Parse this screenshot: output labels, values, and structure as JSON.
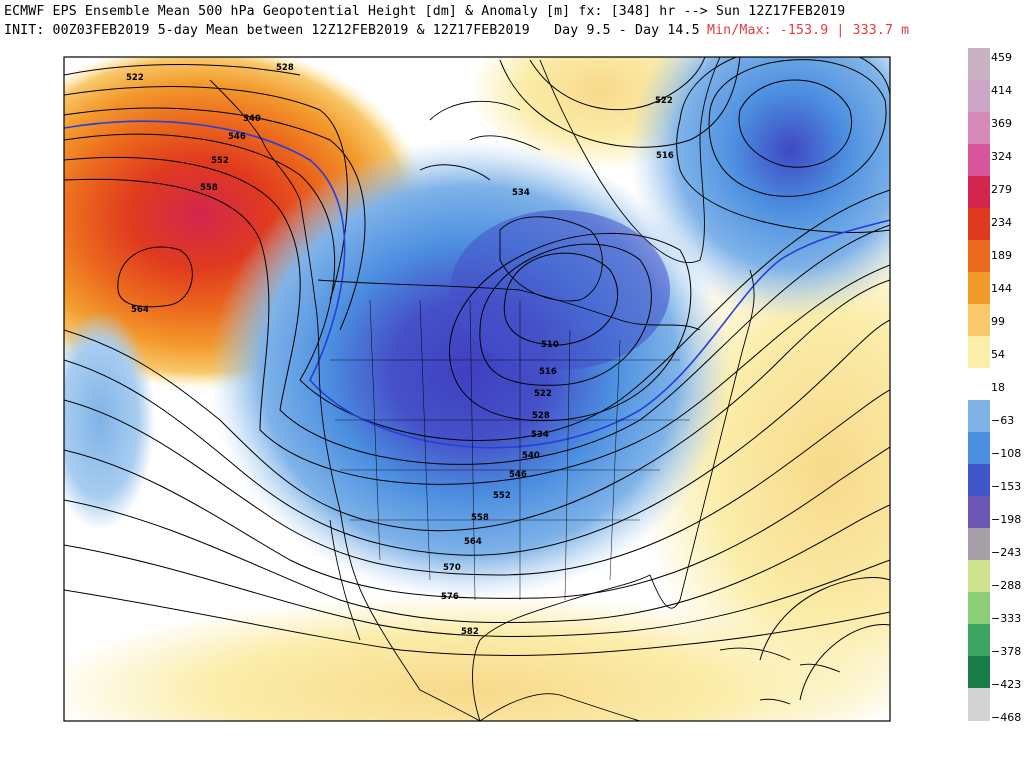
{
  "header": {
    "line1": "ECMWF EPS Ensemble Mean 500 hPa Geopotential Height [dm] & Anomaly [m] fx: [348] hr --> Sun 12Z17FEB2019",
    "line2": "INIT: 00Z03FEB2019 5-day Mean between 12Z12FEB2019 & 12Z17FEB2019   Day 9.5 - Day 14.5",
    "minmax": "Min/Max: -153.9 | 333.7 m"
  },
  "colorbar": {
    "labels": [
      "459",
      "414",
      "369",
      "324",
      "279",
      "234",
      "189",
      "144",
      "99",
      "54",
      "18",
      "−63",
      "−108",
      "−153",
      "−198",
      "−243",
      "−288",
      "−333",
      "−378",
      "−423",
      "−468"
    ],
    "colors": [
      "#c8b2c4",
      "#cda5c5",
      "#d58ab8",
      "#d7559a",
      "#d3264f",
      "#e03a1e",
      "#ec6a1d",
      "#f39a2d",
      "#f8c86a",
      "#fbedaa",
      "#ffffff",
      "#7fb3e8",
      "#4c8fe0",
      "#3f57c8",
      "#6b56b5",
      "#a79fa8",
      "#cfe38e",
      "#8bcd79",
      "#3da560",
      "#1a7c46",
      "#d3d3d3"
    ]
  },
  "map": {
    "contour_labels": [
      "522",
      "528",
      "540",
      "546",
      "552",
      "558",
      "564",
      "534",
      "522",
      "516",
      "510",
      "516",
      "522",
      "528",
      "534",
      "540",
      "546",
      "552",
      "558",
      "564",
      "570",
      "576",
      "582"
    ]
  }
}
